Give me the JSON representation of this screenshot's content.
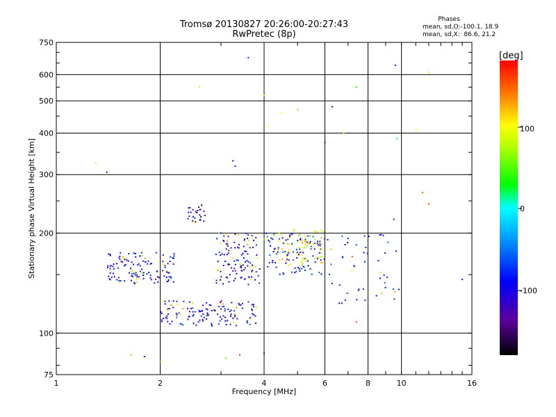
{
  "header": {
    "title_line1": "Tromsø 20130827 20:26:00-20:27:43",
    "title_line2": "RwPretec (8p)"
  },
  "phases": {
    "heading": "Phases",
    "o_line": "mean, sd,O:-100.1, 18.9",
    "x_line": "mean, sd,X:  86.6, 21.2"
  },
  "colorbar": {
    "label": "[deg]",
    "ticks": [
      "100",
      "0",
      "-100"
    ]
  },
  "chart_data": {
    "type": "scatter",
    "xlabel": "Frequency [MHz]",
    "ylabel": "Stationary phase Virtual Height [km]",
    "xscale": "log",
    "yscale": "log",
    "xlim": [
      1,
      16
    ],
    "ylim": [
      75,
      750
    ],
    "xticks": [
      1,
      2,
      4,
      6,
      8,
      10,
      16
    ],
    "xtick_labels": [
      "1",
      "2",
      "4",
      "6",
      "8",
      "10",
      "16"
    ],
    "yticks": [
      75,
      100,
      200,
      300,
      400,
      500,
      600,
      750
    ],
    "ytick_labels": [
      "75",
      "100",
      "200",
      "300",
      "400",
      "500",
      "600",
      "750"
    ],
    "grid": true,
    "color_scale": {
      "label": "[deg]",
      "min": -180,
      "max": 180,
      "ticks": [
        100,
        0,
        -100
      ]
    },
    "clusters": [
      {
        "name": "",
        "fmin": 1.4,
        "fmax": 2.2,
        "hmin": 140,
        "hmax": 175,
        "phase": -100,
        "count": 130
      },
      {
        "name": "",
        "fmin": 2.4,
        "fmax": 2.7,
        "hmin": 215,
        "hmax": 245,
        "phase": -110,
        "count": 30
      },
      {
        "name": "",
        "fmin": 2.0,
        "fmax": 3.8,
        "hmin": 105,
        "hmax": 125,
        "phase": -100,
        "count": 140
      },
      {
        "name": "",
        "fmin": 2.9,
        "fmax": 3.9,
        "hmin": 140,
        "hmax": 200,
        "phase": -100,
        "count": 120
      },
      {
        "name": "",
        "fmin": 4.0,
        "fmax": 6.0,
        "hmin": 150,
        "hmax": 200,
        "phase": -90,
        "count": 110
      },
      {
        "name": "",
        "fmin": 4.4,
        "fmax": 6.0,
        "hmin": 160,
        "hmax": 205,
        "phase": 90,
        "count": 60
      },
      {
        "name": "",
        "fmin": 6.1,
        "fmax": 10.0,
        "hmin": 120,
        "hmax": 200,
        "phase": -90,
        "count": 50
      }
    ],
    "points": [
      {
        "x": 3.25,
        "y": 330,
        "phase": -100
      },
      {
        "x": 3.3,
        "y": 318,
        "phase": -105
      },
      {
        "x": 3.6,
        "y": 675,
        "phase": -80
      },
      {
        "x": 4.0,
        "y": 520,
        "phase": 110
      },
      {
        "x": 4.1,
        "y": 420,
        "phase": 95
      },
      {
        "x": 4.5,
        "y": 460,
        "phase": 100
      },
      {
        "x": 5.0,
        "y": 470,
        "phase": 120
      },
      {
        "x": 6.3,
        "y": 480,
        "phase": -110
      },
      {
        "x": 6.8,
        "y": 400,
        "phase": 80
      },
      {
        "x": 7.4,
        "y": 550,
        "phase": 30
      },
      {
        "x": 9.6,
        "y": 640,
        "phase": -110
      },
      {
        "x": 12.0,
        "y": 610,
        "phase": 110
      },
      {
        "x": 11.0,
        "y": 410,
        "phase": 100
      },
      {
        "x": 2.6,
        "y": 550,
        "phase": 110
      },
      {
        "x": 1.3,
        "y": 325,
        "phase": 110
      },
      {
        "x": 1.4,
        "y": 305,
        "phase": -100
      },
      {
        "x": 6.0,
        "y": 375,
        "phase": -100
      },
      {
        "x": 9.7,
        "y": 385,
        "phase": 20
      },
      {
        "x": 15.0,
        "y": 145,
        "phase": -110
      },
      {
        "x": 11.5,
        "y": 265,
        "phase": 150
      },
      {
        "x": 12.0,
        "y": 245,
        "phase": 160
      },
      {
        "x": 4.0,
        "y": 87,
        "phase": -110
      },
      {
        "x": 3.4,
        "y": 86,
        "phase": 170
      },
      {
        "x": 1.65,
        "y": 86,
        "phase": 60
      },
      {
        "x": 1.8,
        "y": 85,
        "phase": -100
      },
      {
        "x": 2.0,
        "y": 82,
        "phase": 130
      },
      {
        "x": 3.1,
        "y": 84,
        "phase": 50
      },
      {
        "x": 7.2,
        "y": 170,
        "phase": 150
      },
      {
        "x": 7.4,
        "y": 108,
        "phase": 160
      },
      {
        "x": 9.5,
        "y": 220,
        "phase": -120
      }
    ]
  }
}
